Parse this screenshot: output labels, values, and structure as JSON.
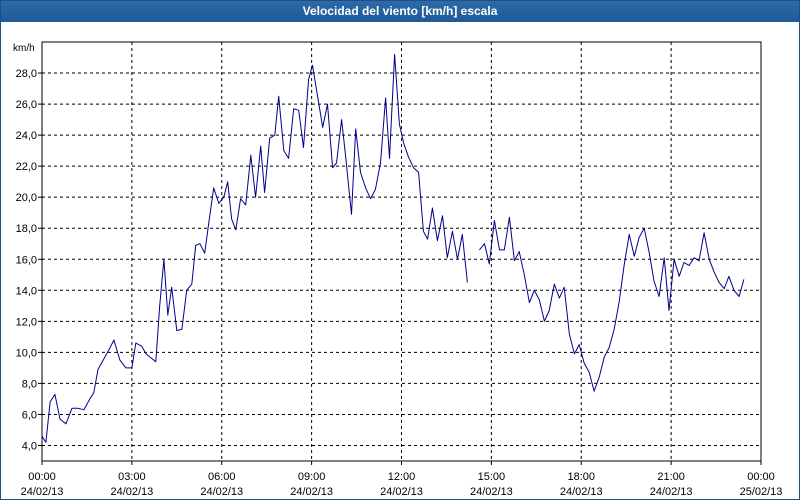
{
  "window": {
    "title": "Velocidad del viento [km/h] escala"
  },
  "chart_data": {
    "type": "line",
    "title": "Velocidad del viento [km/h] escala",
    "ylabel": "km/h",
    "xlabel": "",
    "ylim": [
      3,
      30
    ],
    "xlim": [
      0,
      24
    ],
    "y_ticks": [
      4,
      6,
      8,
      10,
      12,
      14,
      16,
      18,
      20,
      22,
      24,
      26,
      28
    ],
    "y_tick_labels": [
      "4,0",
      "6,0",
      "8,0",
      "10,0",
      "12,0",
      "14,0",
      "16,0",
      "18,0",
      "20,0",
      "22,0",
      "24,0",
      "26,0",
      "28,0"
    ],
    "x_ticks": [
      {
        "hour": 0,
        "time": "00:00",
        "date": "24/02/13"
      },
      {
        "hour": 3,
        "time": "03:00",
        "date": "24/02/13"
      },
      {
        "hour": 6,
        "time": "06:00",
        "date": "24/02/13"
      },
      {
        "hour": 9,
        "time": "09:00",
        "date": "24/02/13"
      },
      {
        "hour": 12,
        "time": "12:00",
        "date": "24/02/13"
      },
      {
        "hour": 15,
        "time": "15:00",
        "date": "24/02/13"
      },
      {
        "hour": 18,
        "time": "18:00",
        "date": "24/02/13"
      },
      {
        "hour": 21,
        "time": "21:00",
        "date": "24/02/13"
      },
      {
        "hour": 24,
        "time": "00:00",
        "date": "25/02/13"
      }
    ],
    "grid": true,
    "series": [
      {
        "color": "#00008b",
        "segments": [
          [
            [
              0.0,
              4.6
            ],
            [
              0.13,
              4.2
            ],
            [
              0.27,
              6.8
            ],
            [
              0.43,
              7.3
            ],
            [
              0.6,
              5.7
            ],
            [
              0.8,
              5.4
            ],
            [
              1.0,
              6.4
            ],
            [
              1.2,
              6.4
            ],
            [
              1.4,
              6.3
            ],
            [
              1.6,
              7.0
            ],
            [
              1.73,
              7.4
            ],
            [
              1.87,
              8.9
            ],
            [
              2.07,
              9.6
            ],
            [
              2.27,
              10.3
            ],
            [
              2.4,
              10.8
            ],
            [
              2.6,
              9.5
            ],
            [
              2.8,
              9.0
            ],
            [
              3.0,
              9.0
            ],
            [
              3.13,
              10.6
            ],
            [
              3.33,
              10.4
            ],
            [
              3.47,
              9.9
            ],
            [
              3.67,
              9.6
            ],
            [
              3.8,
              9.4
            ],
            [
              3.93,
              13.0
            ],
            [
              4.07,
              16.0
            ],
            [
              4.2,
              12.4
            ],
            [
              4.33,
              14.2
            ],
            [
              4.5,
              11.4
            ],
            [
              4.67,
              11.5
            ],
            [
              4.83,
              14.0
            ],
            [
              5.0,
              14.4
            ],
            [
              5.13,
              16.9
            ],
            [
              5.27,
              17.0
            ],
            [
              5.43,
              16.4
            ],
            [
              5.57,
              18.4
            ],
            [
              5.73,
              20.6
            ],
            [
              5.9,
              19.6
            ],
            [
              6.07,
              20.0
            ],
            [
              6.2,
              21.0
            ],
            [
              6.33,
              18.6
            ],
            [
              6.47,
              17.9
            ],
            [
              6.63,
              19.9
            ],
            [
              6.8,
              19.5
            ],
            [
              6.97,
              22.7
            ],
            [
              7.13,
              20.0
            ],
            [
              7.3,
              23.3
            ],
            [
              7.43,
              20.3
            ],
            [
              7.6,
              23.8
            ],
            [
              7.77,
              24.0
            ],
            [
              7.9,
              26.5
            ],
            [
              8.07,
              23.0
            ],
            [
              8.23,
              22.5
            ],
            [
              8.4,
              25.7
            ],
            [
              8.57,
              25.6
            ],
            [
              8.73,
              23.2
            ],
            [
              8.9,
              27.6
            ],
            [
              9.03,
              28.5
            ],
            [
              9.2,
              26.5
            ],
            [
              9.37,
              24.5
            ],
            [
              9.53,
              26.0
            ],
            [
              9.7,
              21.9
            ],
            [
              9.83,
              22.2
            ],
            [
              10.0,
              25.0
            ],
            [
              10.13,
              22.7
            ],
            [
              10.33,
              18.9
            ],
            [
              10.47,
              24.4
            ],
            [
              10.63,
              21.6
            ],
            [
              10.8,
              20.6
            ],
            [
              10.97,
              19.9
            ],
            [
              11.13,
              20.5
            ],
            [
              11.3,
              22.2
            ],
            [
              11.47,
              26.4
            ],
            [
              11.6,
              22.5
            ],
            [
              11.77,
              29.2
            ],
            [
              11.93,
              24.7
            ],
            [
              12.07,
              23.5
            ],
            [
              12.23,
              22.6
            ],
            [
              12.4,
              21.9
            ],
            [
              12.57,
              21.6
            ],
            [
              12.73,
              17.8
            ],
            [
              12.87,
              17.3
            ],
            [
              13.03,
              19.3
            ],
            [
              13.2,
              17.2
            ],
            [
              13.37,
              18.8
            ],
            [
              13.53,
              16.1
            ],
            [
              13.7,
              17.8
            ],
            [
              13.87,
              16.0
            ],
            [
              14.03,
              17.6
            ],
            [
              14.2,
              14.5
            ]
          ],
          [
            [
              14.6,
              16.6
            ],
            [
              14.77,
              17.0
            ],
            [
              14.93,
              15.7
            ],
            [
              15.1,
              18.5
            ],
            [
              15.27,
              16.6
            ],
            [
              15.43,
              16.6
            ],
            [
              15.6,
              18.7
            ],
            [
              15.77,
              15.9
            ],
            [
              15.93,
              16.5
            ],
            [
              16.1,
              15.0
            ],
            [
              16.27,
              13.2
            ],
            [
              16.43,
              14.0
            ],
            [
              16.6,
              13.4
            ],
            [
              16.77,
              12.0
            ],
            [
              16.93,
              12.7
            ],
            [
              17.1,
              14.4
            ],
            [
              17.27,
              13.5
            ],
            [
              17.43,
              14.2
            ],
            [
              17.6,
              11.2
            ],
            [
              17.77,
              9.9
            ],
            [
              17.93,
              10.5
            ],
            [
              18.1,
              9.3
            ],
            [
              18.27,
              8.7
            ],
            [
              18.43,
              7.5
            ],
            [
              18.6,
              8.4
            ],
            [
              18.77,
              9.7
            ],
            [
              18.93,
              10.3
            ],
            [
              19.1,
              11.5
            ],
            [
              19.27,
              13.3
            ],
            [
              19.43,
              15.6
            ],
            [
              19.6,
              17.6
            ],
            [
              19.77,
              16.2
            ],
            [
              19.93,
              17.4
            ],
            [
              20.1,
              18.0
            ],
            [
              20.27,
              16.4
            ],
            [
              20.43,
              14.6
            ],
            [
              20.6,
              13.6
            ],
            [
              20.77,
              16.1
            ],
            [
              20.93,
              12.7
            ],
            [
              21.1,
              16.0
            ],
            [
              21.27,
              14.9
            ],
            [
              21.43,
              15.8
            ],
            [
              21.6,
              15.6
            ],
            [
              21.77,
              16.1
            ],
            [
              21.93,
              15.9
            ],
            [
              22.1,
              17.7
            ],
            [
              22.27,
              16.0
            ],
            [
              22.43,
              15.2
            ],
            [
              22.6,
              14.5
            ],
            [
              22.77,
              14.1
            ],
            [
              22.93,
              14.9
            ],
            [
              23.1,
              14.0
            ],
            [
              23.27,
              13.6
            ],
            [
              23.43,
              14.7
            ]
          ]
        ]
      }
    ]
  }
}
